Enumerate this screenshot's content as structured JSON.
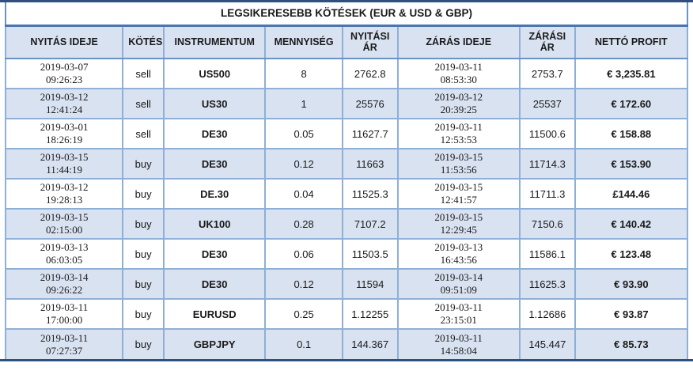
{
  "table": {
    "title": "LEGSIKERESEBB KÖTÉSEK (EUR & USD & GBP)",
    "columns": [
      "NYITÁS IDEJE",
      "KÖTÉS",
      "INSTRUMENTUM",
      "MENNYISÉG",
      "NYITÁSI ÁR",
      "ZÁRÁS IDEJE",
      "ZÁRÁSI ÁR",
      "NETTÓ PROFIT"
    ],
    "rows": [
      {
        "open_date": "2019-03-07",
        "open_clock": "09:26:23",
        "side": "sell",
        "instrument": "US500",
        "quantity": "8",
        "open_price": "2762.8",
        "close_date": "2019-03-11",
        "close_clock": "08:53:30",
        "close_price": "2753.7",
        "net_profit": "€ 3,235.81"
      },
      {
        "open_date": "2019-03-12",
        "open_clock": "12:41:24",
        "side": "sell",
        "instrument": "US30",
        "quantity": "1",
        "open_price": "25576",
        "close_date": "2019-03-12",
        "close_clock": "20:39:25",
        "close_price": "25537",
        "net_profit": "€ 172.60"
      },
      {
        "open_date": "2019-03-01",
        "open_clock": "18:26:19",
        "side": "sell",
        "instrument": "DE30",
        "quantity": "0.05",
        "open_price": "11627.7",
        "close_date": "2019-03-11",
        "close_clock": "12:53:53",
        "close_price": "11500.6",
        "net_profit": "€ 158.88"
      },
      {
        "open_date": "2019-03-15",
        "open_clock": "11:44:19",
        "side": "buy",
        "instrument": "DE30",
        "quantity": "0.12",
        "open_price": "11663",
        "close_date": "2019-03-15",
        "close_clock": "11:53:56",
        "close_price": "11714.3",
        "net_profit": "€ 153.90"
      },
      {
        "open_date": "2019-03-12",
        "open_clock": "19:28:13",
        "side": "buy",
        "instrument": "DE.30",
        "quantity": "0.04",
        "open_price": "11525.3",
        "close_date": "2019-03-15",
        "close_clock": "12:41:57",
        "close_price": "11711.3",
        "net_profit": "£144.46"
      },
      {
        "open_date": "2019-03-15",
        "open_clock": "02:15:00",
        "side": "buy",
        "instrument": "UK100",
        "quantity": "0.28",
        "open_price": "7107.2",
        "close_date": "2019-03-15",
        "close_clock": "12:29:45",
        "close_price": "7150.6",
        "net_profit": "€ 140.42"
      },
      {
        "open_date": "2019-03-13",
        "open_clock": "06:03:05",
        "side": "buy",
        "instrument": "DE30",
        "quantity": "0.06",
        "open_price": "11503.5",
        "close_date": "2019-03-13",
        "close_clock": "16:43:56",
        "close_price": "11586.1",
        "net_profit": "€ 123.48"
      },
      {
        "open_date": "2019-03-14",
        "open_clock": "09:26:22",
        "side": "buy",
        "instrument": "DE30",
        "quantity": "0.12",
        "open_price": "11594",
        "close_date": "2019-03-14",
        "close_clock": "09:51:09",
        "close_price": "11625.3",
        "net_profit": "€ 93.90"
      },
      {
        "open_date": "2019-03-11",
        "open_clock": "17:00:00",
        "side": "buy",
        "instrument": "EURUSD",
        "quantity": "0.25",
        "open_price": "1.12255",
        "close_date": "2019-03-11",
        "close_clock": "23:15:01",
        "close_price": "1.12686",
        "net_profit": "€ 93.87"
      },
      {
        "open_date": "2019-03-11",
        "open_clock": "07:27:37",
        "side": "buy",
        "instrument": "GBPJPY",
        "quantity": "0.1",
        "open_price": "144.367",
        "close_date": "2019-03-11",
        "close_clock": "14:58:04",
        "close_price": "145.447",
        "net_profit": "€ 85.73"
      }
    ]
  },
  "colors": {
    "stripe_fill": "#d9e2f1",
    "header_fill": "#d9e2f1",
    "grid_border": "#8fafd6",
    "outer_border": "#6b93c4",
    "title_separator": "#4a76ad",
    "page_rule": "#2f4f7e",
    "text": "#1a1a1a"
  }
}
